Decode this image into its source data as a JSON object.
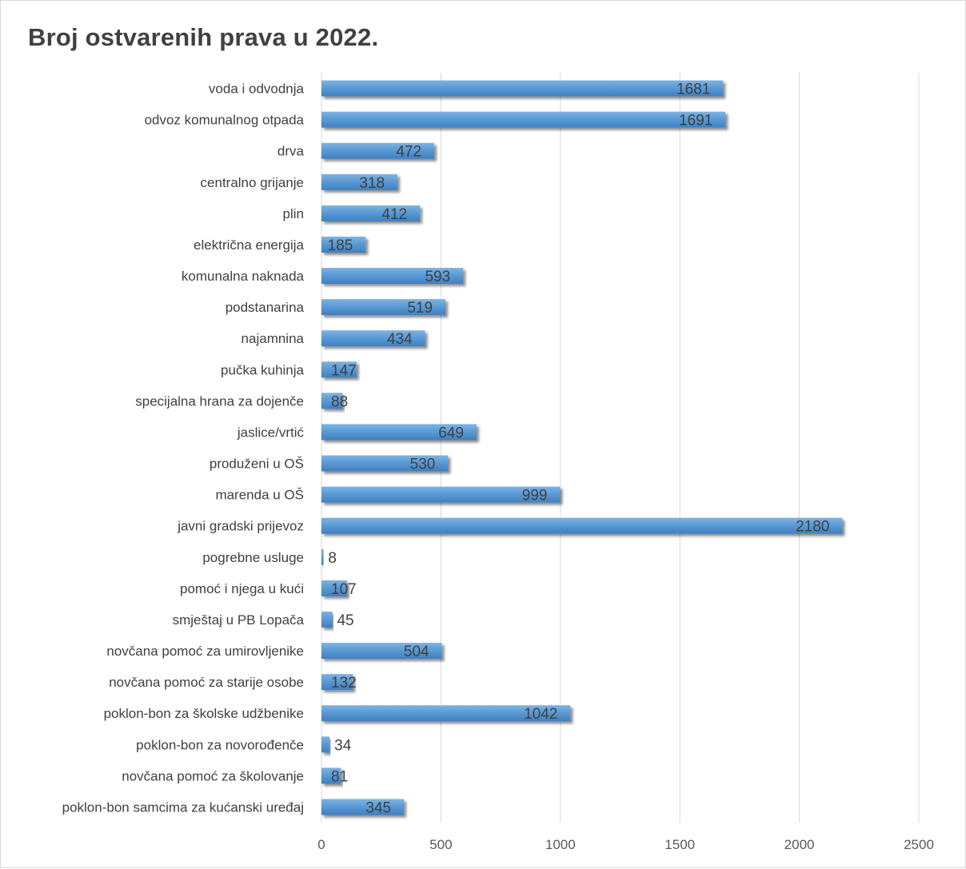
{
  "chart_data": {
    "type": "bar",
    "orientation": "horizontal",
    "title": "Broj ostvarenih prava u 2022.",
    "xlabel": "",
    "ylabel": "",
    "categories": [
      "voda i odvodnja",
      "odvoz komunalnog otpada",
      "drva",
      "centralno grijanje",
      "plin",
      "električna energija",
      "komunalna naknada",
      "podstanarina",
      "najamnina",
      "pučka kuhinja",
      "specijalna hrana za dojenče",
      "jaslice/vrtić",
      "produženi u OŠ",
      "marenda u OŠ",
      "javni gradski prijevoz",
      "pogrebne usluge",
      "pomoć i njega u kući",
      "smještaj u PB Lopača",
      "novčana pomoć za umirovljenike",
      "novčana pomoć za starije osobe",
      "poklon-bon za školske udžbenike",
      "poklon-bon za novorođenče",
      "novčana pomoć za školovanje",
      "poklon-bon samcima za kućanski uređaj"
    ],
    "values": [
      1681,
      1691,
      472,
      318,
      412,
      185,
      593,
      519,
      434,
      147,
      88,
      649,
      530,
      999,
      2180,
      8,
      107,
      45,
      504,
      132,
      1042,
      34,
      81,
      345
    ],
    "xlim": [
      0,
      2500
    ],
    "xticks": [
      0,
      500,
      1000,
      1500,
      2000,
      2500
    ],
    "grid": true,
    "legend": "none",
    "bar_color": "#5b9bd5",
    "label_color": "#404040"
  }
}
